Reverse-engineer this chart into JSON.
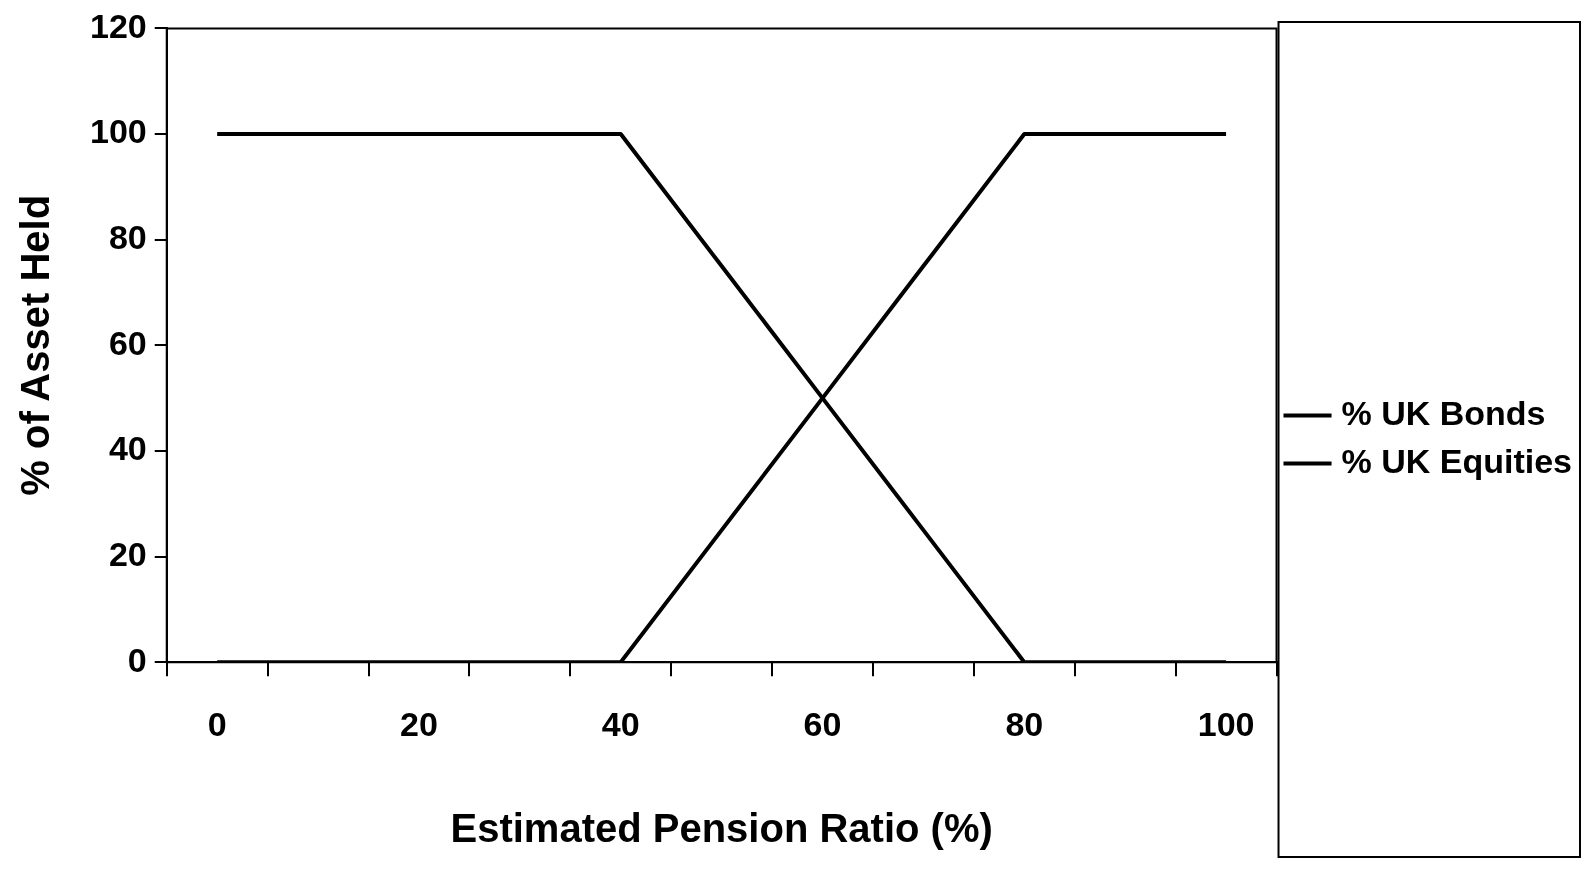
{
  "chart_data": {
    "type": "line",
    "xlabel": "Estimated Pension Ratio (%)",
    "ylabel": "% of Asset Held",
    "categories": [
      "0",
      null,
      "20",
      null,
      "40",
      null,
      "60",
      null,
      "80",
      null,
      "100"
    ],
    "series": [
      {
        "name": "% UK Bonds",
        "color": "#000000",
        "values": [
          0,
          0,
          0,
          0,
          0,
          25,
          50,
          75,
          100,
          100,
          100
        ]
      },
      {
        "name": "% UK Equities",
        "color": "#000000",
        "values": [
          100,
          100,
          100,
          100,
          100,
          75,
          50,
          25,
          0,
          0,
          0
        ]
      }
    ],
    "ylim": [
      0,
      120
    ],
    "yticks": [
      0,
      20,
      40,
      60,
      80,
      100,
      120
    ],
    "grid": false,
    "legend": "right",
    "marker": "none",
    "line_style": "solid"
  }
}
